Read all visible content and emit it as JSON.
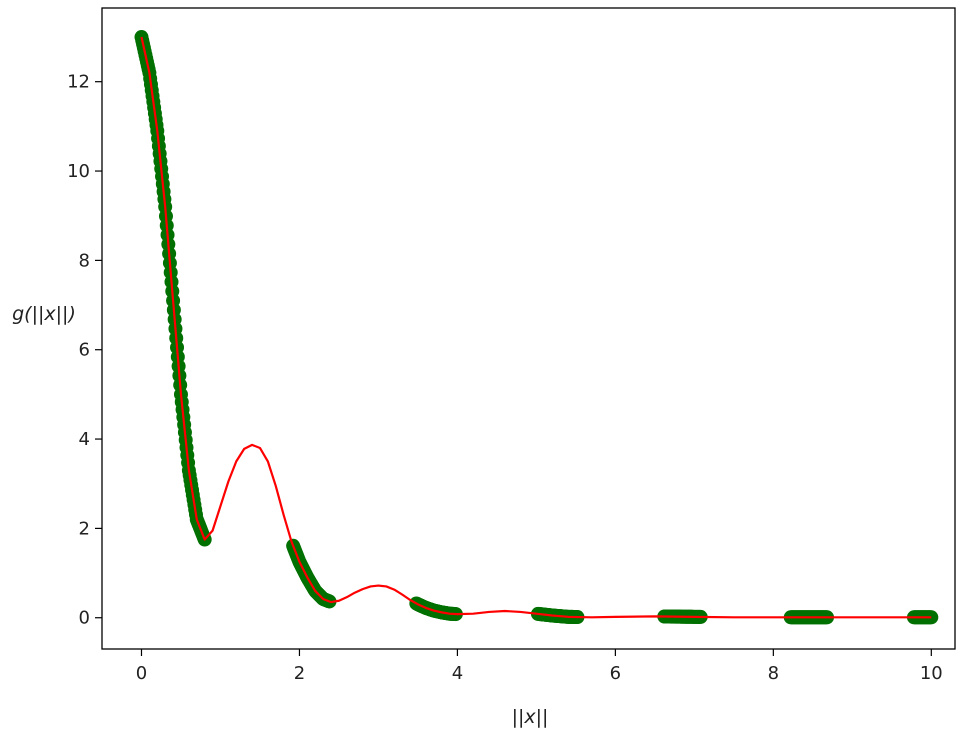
{
  "chart_data": {
    "type": "scatter",
    "xlabel": "||x||",
    "ylabel": "g(||x||)",
    "xlim": [
      -0.5,
      10.3
    ],
    "ylim": [
      -0.7,
      13.65
    ],
    "x_ticks": [
      0,
      2,
      4,
      6,
      8,
      10
    ],
    "y_ticks": [
      0,
      2,
      4,
      6,
      8,
      10,
      12
    ],
    "x_tick_labels": [
      "0",
      "2",
      "4",
      "6",
      "8",
      "10"
    ],
    "y_tick_labels": [
      "0",
      "2",
      "4",
      "6",
      "8",
      "10",
      "12"
    ],
    "grid": false,
    "series": [
      {
        "kind": "line",
        "color": "#ff0000",
        "points": [
          [
            0.0,
            13.0
          ],
          [
            0.1,
            12.2
          ],
          [
            0.2,
            10.9
          ],
          [
            0.3,
            9.2
          ],
          [
            0.4,
            7.1
          ],
          [
            0.5,
            5.0
          ],
          [
            0.6,
            3.3
          ],
          [
            0.7,
            2.2
          ],
          [
            0.8,
            1.75
          ],
          [
            0.9,
            1.95
          ],
          [
            1.0,
            2.5
          ],
          [
            1.1,
            3.05
          ],
          [
            1.2,
            3.5
          ],
          [
            1.3,
            3.78
          ],
          [
            1.4,
            3.87
          ],
          [
            1.5,
            3.8
          ],
          [
            1.6,
            3.5
          ],
          [
            1.7,
            2.95
          ],
          [
            1.8,
            2.3
          ],
          [
            1.9,
            1.7
          ],
          [
            2.0,
            1.25
          ],
          [
            2.1,
            0.9
          ],
          [
            2.2,
            0.6
          ],
          [
            2.3,
            0.42
          ],
          [
            2.4,
            0.35
          ],
          [
            2.5,
            0.38
          ],
          [
            2.6,
            0.46
          ],
          [
            2.7,
            0.56
          ],
          [
            2.8,
            0.64
          ],
          [
            2.9,
            0.7
          ],
          [
            3.0,
            0.72
          ],
          [
            3.1,
            0.7
          ],
          [
            3.2,
            0.63
          ],
          [
            3.3,
            0.52
          ],
          [
            3.4,
            0.4
          ],
          [
            3.5,
            0.3
          ],
          [
            3.6,
            0.22
          ],
          [
            3.7,
            0.16
          ],
          [
            3.8,
            0.12
          ],
          [
            3.9,
            0.09
          ],
          [
            4.0,
            0.08
          ],
          [
            4.2,
            0.09
          ],
          [
            4.4,
            0.13
          ],
          [
            4.6,
            0.15
          ],
          [
            4.8,
            0.13
          ],
          [
            5.0,
            0.09
          ],
          [
            5.2,
            0.05
          ],
          [
            5.4,
            0.02
          ],
          [
            5.7,
            0.01
          ],
          [
            6.0,
            0.02
          ],
          [
            6.5,
            0.03
          ],
          [
            7.0,
            0.02
          ],
          [
            7.5,
            0.01
          ],
          [
            8.0,
            0.01
          ],
          [
            9.0,
            0.01
          ],
          [
            10.0,
            0.01
          ]
        ]
      },
      {
        "kind": "scatter",
        "color": "#007000",
        "segments": [
          {
            "x_start": 0.0,
            "x_end": 0.8
          },
          {
            "x_start": 1.92,
            "x_end": 2.38
          },
          {
            "x_start": 3.48,
            "x_end": 3.98
          },
          {
            "x_start": 5.02,
            "x_end": 5.52
          },
          {
            "x_start": 6.62,
            "x_end": 7.08
          },
          {
            "x_start": 8.22,
            "x_end": 8.68
          },
          {
            "x_start": 9.78,
            "x_end": 10.0
          }
        ]
      }
    ]
  }
}
